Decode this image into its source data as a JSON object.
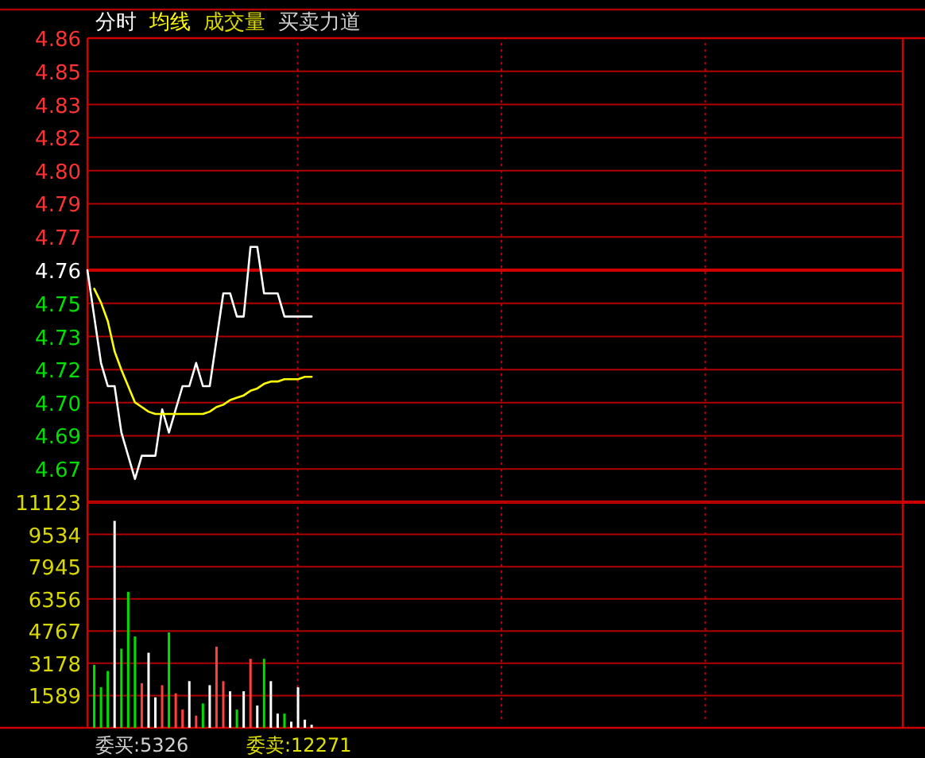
{
  "chart_data": [
    {
      "type": "line",
      "categories": [
        null,
        null,
        null,
        null,
        null,
        null,
        null,
        null,
        null,
        null,
        null,
        null,
        null,
        null,
        null,
        null,
        null,
        null,
        null,
        null,
        null,
        null,
        null,
        null,
        null,
        null,
        null,
        null,
        null,
        null,
        null,
        null,
        null,
        null,
        null,
        null,
        null,
        null,
        null,
        null,
        null,
        null,
        null,
        null,
        null,
        null,
        null,
        null,
        null,
        null,
        null,
        null,
        null,
        null,
        null,
        null,
        null,
        null,
        null,
        null,
        null,
        null,
        null,
        null,
        null,
        null,
        null,
        null,
        null,
        null,
        null,
        null,
        null,
        null,
        null,
        null,
        null,
        null,
        null,
        null,
        null,
        null,
        null,
        null,
        null,
        null,
        null,
        null,
        null,
        null,
        null,
        null,
        null,
        null,
        null,
        null,
        null,
        null,
        null,
        null,
        null,
        null,
        null,
        null,
        null,
        null,
        null,
        null,
        null,
        null,
        null,
        null,
        null,
        null,
        null,
        null,
        null,
        null,
        null,
        null,
        null
      ],
      "series": [
        {
          "name": "分时",
          "color": "#ffffff",
          "values": [
            4.76,
            4.74,
            4.72,
            4.71,
            4.71,
            4.69,
            4.68,
            4.67,
            4.68,
            4.68,
            4.68,
            4.7,
            4.69,
            4.7,
            4.71,
            4.71,
            4.72,
            4.71,
            4.71,
            4.73,
            4.75,
            4.75,
            4.74,
            4.74,
            4.77,
            4.77,
            4.75,
            4.75,
            4.75,
            4.74,
            4.74,
            4.74,
            4.74,
            4.74,
            null,
            null,
            null,
            null,
            null,
            null,
            null,
            null,
            null,
            null,
            null,
            null,
            null,
            null,
            null,
            null,
            null,
            null,
            null,
            null,
            null,
            null,
            null,
            null,
            null,
            null,
            null,
            null,
            null,
            null,
            null,
            null,
            null,
            null,
            null,
            null,
            null,
            null,
            null,
            null,
            null,
            null,
            null,
            null,
            null,
            null,
            null,
            null,
            null,
            null,
            null,
            null,
            null,
            null,
            null,
            null,
            null,
            null,
            null,
            null,
            null,
            null,
            null,
            null,
            null,
            null,
            null,
            null,
            null,
            null,
            null,
            null,
            null,
            null,
            null,
            null,
            null,
            null,
            null,
            null,
            null,
            null,
            null,
            null,
            null,
            null,
            null
          ]
        },
        {
          "name": "均线",
          "color": "#ffff00",
          "values": [
            null,
            4.752,
            4.746,
            4.738,
            4.725,
            4.717,
            4.71,
            4.703,
            4.701,
            4.699,
            4.698,
            4.698,
            4.698,
            4.698,
            4.698,
            4.698,
            4.698,
            4.698,
            4.699,
            4.701,
            4.702,
            4.704,
            4.705,
            4.706,
            4.708,
            4.709,
            4.711,
            4.712,
            4.712,
            4.713,
            4.713,
            4.713,
            4.714,
            4.714,
            null,
            null,
            null,
            null,
            null,
            null,
            null,
            null,
            null,
            null,
            null,
            null,
            null,
            null,
            null,
            null,
            null,
            null,
            null,
            null,
            null,
            null,
            null,
            null,
            null,
            null,
            null,
            null,
            null,
            null,
            null,
            null,
            null,
            null,
            null,
            null,
            null,
            null,
            null,
            null,
            null,
            null,
            null,
            null,
            null,
            null,
            null,
            null,
            null,
            null,
            null,
            null,
            null,
            null,
            null,
            null,
            null,
            null,
            null,
            null,
            null,
            null,
            null,
            null,
            null,
            null,
            null,
            null,
            null,
            null,
            null,
            null,
            null,
            null,
            null,
            null,
            null,
            null,
            null,
            null,
            null,
            null,
            null,
            null,
            null,
            null,
            null
          ]
        }
      ],
      "ylim": [
        4.66,
        4.86
      ],
      "yticks": [
        {
          "value": 4.6743,
          "label": "4.67"
        },
        {
          "value": 4.6886,
          "label": "4.69"
        },
        {
          "value": 4.7029,
          "label": "4.70"
        },
        {
          "value": 4.7171,
          "label": "4.72"
        },
        {
          "value": 4.7314,
          "label": "4.73"
        },
        {
          "value": 4.7457,
          "label": "4.75"
        },
        4.76,
        {
          "value": 4.7743,
          "label": "4.77"
        },
        {
          "value": 4.7886,
          "label": "4.79"
        },
        {
          "value": 4.8029,
          "label": "4.80"
        },
        {
          "value": 4.8171,
          "label": "4.82"
        },
        {
          "value": 4.8314,
          "label": "4.83"
        },
        {
          "value": 4.8457,
          "label": "4.85"
        },
        4.86
      ],
      "grid": "y",
      "marker": "none",
      "line_style": "solid",
      "legend": "top left",
      "tick_labels": "y",
      "ref_lines": [
        {
          "axis": "y",
          "value": 4.76,
          "color": "#d00000"
        }
      ],
      "annotations": [
        "成交量",
        "买卖力道"
      ]
    },
    {
      "type": "bar",
      "categories": [
        null,
        null,
        null,
        null,
        null,
        null,
        null,
        null,
        null,
        null,
        null,
        null,
        null,
        null,
        null,
        null,
        null,
        null,
        null,
        null,
        null,
        null,
        null,
        null,
        null,
        null,
        null,
        null,
        null,
        null,
        null,
        null,
        null,
        null,
        null,
        null,
        null,
        null,
        null,
        null,
        null,
        null,
        null,
        null,
        null,
        null,
        null,
        null,
        null,
        null,
        null,
        null,
        null,
        null,
        null,
        null,
        null,
        null,
        null,
        null,
        null,
        null,
        null,
        null,
        null,
        null,
        null,
        null,
        null,
        null,
        null,
        null,
        null,
        null,
        null,
        null,
        null,
        null,
        null,
        null,
        null,
        null,
        null,
        null,
        null,
        null,
        null,
        null,
        null,
        null,
        null,
        null,
        null,
        null,
        null,
        null,
        null,
        null,
        null,
        null,
        null,
        null,
        null,
        null,
        null,
        null,
        null,
        null,
        null,
        null,
        null,
        null,
        null,
        null,
        null,
        null,
        null,
        null,
        null,
        null,
        null
      ],
      "values": [
        null,
        3100,
        2000,
        2800,
        10200,
        3900,
        6700,
        4500,
        2200,
        3700,
        1500,
        2100,
        4700,
        1700,
        900,
        2300,
        600,
        1200,
        2100,
        4000,
        2300,
        1800,
        900,
        1800,
        3400,
        1100,
        3400,
        2300,
        700,
        700,
        300,
        2000,
        400,
        150,
        null,
        null,
        null,
        null,
        null,
        null,
        null,
        null,
        null,
        null,
        null,
        null,
        null,
        null,
        null,
        null,
        null,
        null,
        null,
        null,
        null,
        null,
        null,
        null,
        null,
        null,
        null,
        null,
        null,
        null,
        null,
        null,
        null,
        null,
        null,
        null,
        null,
        null,
        null,
        null,
        null,
        null,
        null,
        null,
        null,
        null,
        null,
        null,
        null,
        null,
        null,
        null,
        null,
        null,
        null,
        null,
        null,
        null,
        null,
        null,
        null,
        null,
        null,
        null,
        null,
        null,
        null,
        null,
        null,
        null,
        null,
        null,
        null,
        null,
        null,
        null,
        null,
        null,
        null,
        null,
        null,
        null,
        null,
        null,
        null,
        null,
        null
      ],
      "colors": [
        null,
        "#00e000",
        "#00e000",
        "#00e000",
        "#ffffff",
        "#00e000",
        "#00e000",
        "#00e000",
        "#ff4040",
        "#ffffff",
        "#ffffff",
        "#ff4040",
        "#00e000",
        "#ff4040",
        "#ff4040",
        "#ffffff",
        "#ff4040",
        "#00e000",
        "#ffffff",
        "#ff4040",
        "#ff4040",
        "#ffffff",
        "#00e000",
        "#ffffff",
        "#ff4040",
        "#ffffff",
        "#00e000",
        "#ffffff",
        "#ffffff",
        "#00e000",
        "#ffffff",
        "#ffffff",
        "#ffffff",
        "#ffffff",
        null,
        null,
        null,
        null,
        null,
        null,
        null,
        null,
        null,
        null,
        null,
        null,
        null,
        null,
        null,
        null,
        null,
        null,
        null,
        null,
        null,
        null,
        null,
        null,
        null,
        null,
        null,
        null,
        null,
        null,
        null,
        null,
        null,
        null,
        null,
        null,
        null,
        null,
        null,
        null,
        null,
        null,
        null,
        null,
        null,
        null,
        null,
        null,
        null,
        null,
        null,
        null,
        null,
        null,
        null,
        null,
        null,
        null,
        null,
        null,
        null,
        null,
        null,
        null,
        null,
        null,
        null,
        null,
        null,
        null,
        null,
        null,
        null,
        null,
        null,
        null,
        null,
        null,
        null,
        null,
        null,
        null,
        null,
        null,
        null,
        null,
        null
      ],
      "ylim": [
        0,
        11123
      ],
      "yticks": [
        1589,
        3178,
        4767,
        6356,
        7945,
        9534,
        11123
      ],
      "grid": "y",
      "tick_labels": "y",
      "annotations": [
        "委买:5326",
        "委卖:12271"
      ]
    }
  ]
}
